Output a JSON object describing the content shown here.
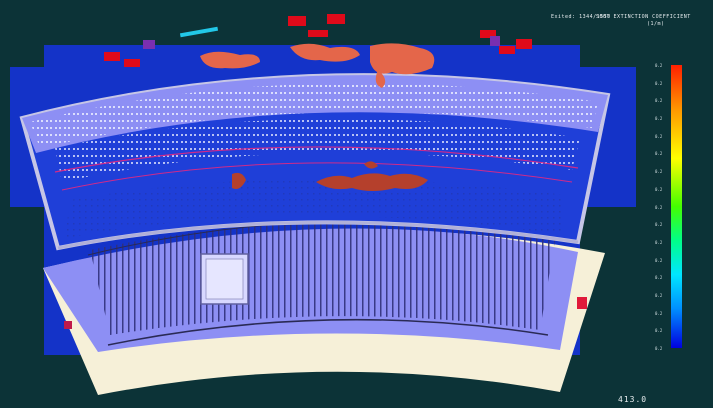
{
  "hud": {
    "evacuation": "Exited: 1344/1550",
    "title_line1": "SOOT EXTINCTION COEFFICIENT",
    "title_line2": "(1/m)",
    "timer": "413.0"
  },
  "colorbar": {
    "tick_labels": [
      "0.2",
      "0.2",
      "0.2",
      "0.2",
      "0.2",
      "0.2",
      "0.2",
      "0.2",
      "0.2",
      "0.2",
      "0.2",
      "0.2",
      "0.2",
      "0.2",
      "0.2",
      "0.2",
      "0.2"
    ],
    "colors": {
      "high": "#ff2000",
      "low": "#0000e0",
      "background": "#0c3337",
      "model_fill": "#7a7cf0",
      "floor_blue": "#1433c8",
      "soot": "#e4664a"
    }
  }
}
